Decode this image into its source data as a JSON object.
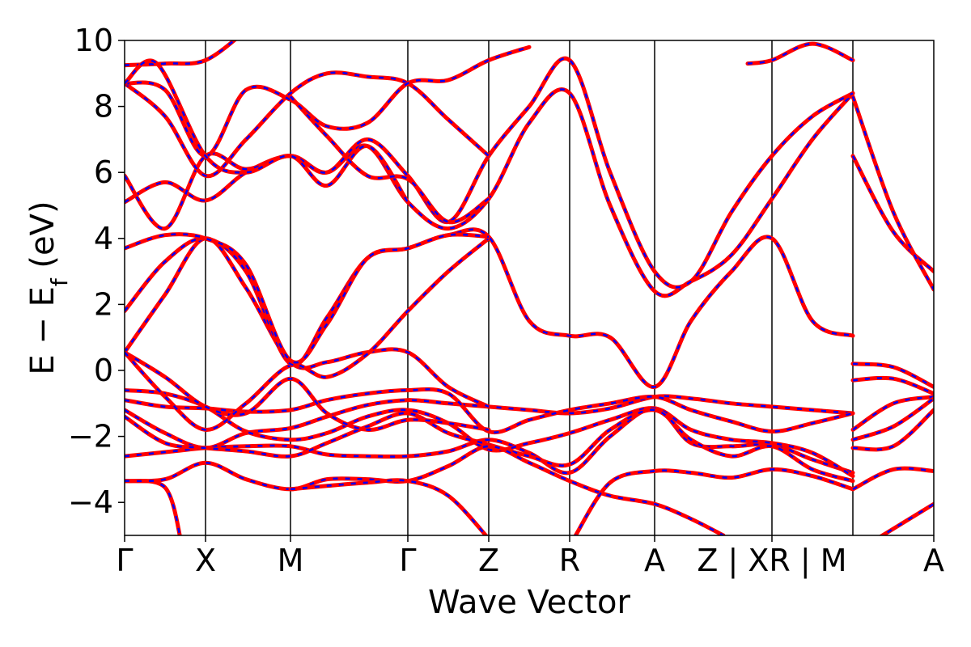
{
  "chart_data": {
    "type": "line",
    "xlabel": "Wave Vector",
    "ylabel_main": "E − E",
    "ylabel_sub": "f",
    "ylabel_unit": " (eV)",
    "ylim": [
      -5,
      10
    ],
    "y_ticks": [
      {
        "value": -4,
        "label": "−4"
      },
      {
        "value": -2,
        "label": "−2"
      },
      {
        "value": 0,
        "label": "0"
      },
      {
        "value": 2,
        "label": "2"
      },
      {
        "value": 4,
        "label": "4"
      },
      {
        "value": 6,
        "label": "6"
      },
      {
        "value": 8,
        "label": "8"
      },
      {
        "value": 10,
        "label": "10"
      }
    ],
    "xlim": [
      0,
      10
    ],
    "k_points": [
      {
        "label": "Γ",
        "x": 0
      },
      {
        "label": "X",
        "x": 1.0
      },
      {
        "label": "M",
        "x": 2.05
      },
      {
        "label": "Γ",
        "x": 3.5
      },
      {
        "label": "Z",
        "x": 4.5
      },
      {
        "label": "R",
        "x": 5.5
      },
      {
        "label": "A",
        "x": 6.55
      },
      {
        "label": "Z | XR | M",
        "x": 8.0
      },
      {
        "label": "A",
        "x": 10.0
      }
    ],
    "vlines": [
      1.0,
      2.05,
      3.5,
      4.5,
      5.5,
      6.55,
      8.0,
      9.0
    ],
    "series_colors": {
      "primary": "#ff0000",
      "overlay": "#0000ff"
    },
    "bands": [
      [
        [
          0,
          -3.35
        ],
        [
          0.5,
          -3.55
        ],
        [
          0.7,
          -5.2
        ]
      ],
      [
        [
          0,
          -2.6
        ],
        [
          0.6,
          -2.45
        ],
        [
          1.0,
          -2.35
        ],
        [
          1.5,
          -2.3
        ],
        [
          2.05,
          -2.3
        ],
        [
          2.5,
          -2.55
        ],
        [
          3.0,
          -2.6
        ],
        [
          3.5,
          -2.6
        ],
        [
          4.0,
          -2.45
        ],
        [
          4.5,
          -2.1
        ],
        [
          5.0,
          -2.5
        ],
        [
          5.5,
          -3.1
        ],
        [
          6.0,
          -2.0
        ],
        [
          6.55,
          -1.15
        ],
        [
          7.0,
          -2.2
        ],
        [
          7.5,
          -2.3
        ],
        [
          8.0,
          -2.25
        ],
        [
          8.5,
          -2.7
        ],
        [
          9.0,
          -3.1
        ]
      ],
      [
        [
          0,
          -1.2
        ],
        [
          0.5,
          -1.9
        ],
        [
          1.0,
          -2.35
        ],
        [
          1.5,
          -1.9
        ],
        [
          2.05,
          -1.75
        ],
        [
          2.5,
          -1.4
        ],
        [
          3.0,
          -1.05
        ],
        [
          3.5,
          -0.9
        ],
        [
          4.0,
          -1.0
        ],
        [
          4.5,
          -1.1
        ],
        [
          5.0,
          -1.2
        ],
        [
          5.5,
          -1.3
        ],
        [
          6.0,
          -1.15
        ],
        [
          6.55,
          -0.8
        ],
        [
          7.0,
          -0.85
        ],
        [
          7.5,
          -1.0
        ],
        [
          8.0,
          -1.1
        ],
        [
          8.5,
          -1.2
        ],
        [
          9.0,
          -1.3
        ]
      ],
      [
        [
          0,
          -0.9
        ],
        [
          0.5,
          -1.1
        ],
        [
          1.0,
          -1.15
        ],
        [
          1.5,
          -1.25
        ],
        [
          2.05,
          -1.2
        ],
        [
          2.5,
          -0.9
        ],
        [
          3.0,
          -0.7
        ],
        [
          3.5,
          -0.6
        ],
        [
          4.0,
          -0.7
        ],
        [
          4.5,
          -1.85
        ],
        [
          5.0,
          -1.5
        ],
        [
          5.5,
          -1.2
        ],
        [
          6.0,
          -1.0
        ],
        [
          6.55,
          -0.8
        ],
        [
          7.0,
          -1.2
        ],
        [
          7.5,
          -1.55
        ],
        [
          8.0,
          -1.85
        ],
        [
          8.5,
          -1.6
        ],
        [
          9.0,
          -1.3
        ]
      ],
      [
        [
          0,
          -0.6
        ],
        [
          0.5,
          -0.7
        ],
        [
          1.0,
          -1.1
        ],
        [
          1.5,
          -1.85
        ],
        [
          2.05,
          -2.1
        ],
        [
          2.5,
          -1.9
        ],
        [
          3.0,
          -1.4
        ],
        [
          3.5,
          -1.2
        ],
        [
          4.0,
          -1.6
        ],
        [
          4.5,
          -2.4
        ],
        [
          5.0,
          -2.2
        ],
        [
          5.5,
          -1.9
        ],
        [
          6.0,
          -1.5
        ],
        [
          6.55,
          -1.15
        ],
        [
          7.0,
          -1.8
        ],
        [
          7.5,
          -2.1
        ],
        [
          8.0,
          -2.2
        ],
        [
          8.5,
          -2.5
        ],
        [
          9.0,
          -3.2
        ]
      ],
      [
        [
          0,
          -1.4
        ],
        [
          0.5,
          -2.2
        ],
        [
          1.0,
          -2.35
        ],
        [
          1.5,
          -2.45
        ],
        [
          2.05,
          -2.6
        ],
        [
          2.5,
          -2.2
        ],
        [
          3.0,
          -1.7
        ],
        [
          3.5,
          -1.3
        ],
        [
          4.0,
          -1.9
        ],
        [
          4.5,
          -2.25
        ],
        [
          5.0,
          -2.6
        ],
        [
          5.5,
          -2.85
        ],
        [
          6.0,
          -1.8
        ],
        [
          6.55,
          -1.2
        ],
        [
          7.0,
          -2.1
        ],
        [
          7.5,
          -2.6
        ],
        [
          8.0,
          -2.3
        ],
        [
          8.5,
          -3.0
        ],
        [
          9.0,
          -3.35
        ]
      ],
      [
        [
          0,
          -3.35
        ],
        [
          0.5,
          -3.3
        ],
        [
          1.0,
          -2.8
        ],
        [
          1.5,
          -3.3
        ],
        [
          2.05,
          -3.6
        ],
        [
          2.5,
          -3.3
        ],
        [
          3.0,
          -3.3
        ],
        [
          3.5,
          -3.35
        ],
        [
          4.0,
          -2.9
        ],
        [
          4.5,
          -2.3
        ],
        [
          5.0,
          -2.8
        ],
        [
          5.5,
          -3.35
        ],
        [
          6.0,
          -3.8
        ],
        [
          6.55,
          -4.05
        ],
        [
          7.0,
          -4.5
        ],
        [
          7.4,
          -5.0
        ]
      ],
      [
        [
          2.05,
          -3.6
        ],
        [
          2.5,
          -3.5
        ],
        [
          3.0,
          -3.4
        ],
        [
          3.5,
          -3.35
        ],
        [
          4.0,
          -3.8
        ],
        [
          4.5,
          -5.1
        ]
      ],
      [
        [
          5.55,
          -5.1
        ],
        [
          6.0,
          -3.4
        ],
        [
          6.55,
          -3.05
        ],
        [
          7.0,
          -3.1
        ],
        [
          7.5,
          -3.25
        ],
        [
          8.0,
          -3.0
        ],
        [
          8.5,
          -3.2
        ],
        [
          9.0,
          -3.6
        ]
      ],
      [
        [
          0,
          0.55
        ],
        [
          0.5,
          -0.2
        ],
        [
          1.0,
          -1.1
        ],
        [
          1.5,
          -1.3
        ],
        [
          2.05,
          -0.25
        ],
        [
          2.5,
          -1.3
        ],
        [
          3.0,
          -1.8
        ],
        [
          3.5,
          -1.5
        ],
        [
          4.0,
          -1.6
        ],
        [
          4.5,
          -1.8
        ]
      ],
      [
        [
          0,
          0.55
        ],
        [
          0.5,
          2.3
        ],
        [
          1.0,
          4.0
        ],
        [
          1.5,
          2.5
        ],
        [
          2.05,
          0.25
        ],
        [
          2.5,
          0.25
        ],
        [
          3.0,
          0.55
        ],
        [
          3.5,
          0.55
        ],
        [
          4.0,
          -0.5
        ],
        [
          4.5,
          -1.1
        ]
      ],
      [
        [
          0,
          0.55
        ],
        [
          0.5,
          -0.8
        ],
        [
          1.0,
          -1.8
        ],
        [
          1.5,
          -1.0
        ],
        [
          2.05,
          0.15
        ],
        [
          2.5,
          -0.2
        ],
        [
          3.0,
          0.5
        ],
        [
          3.5,
          1.8
        ],
        [
          4.0,
          3.0
        ],
        [
          4.5,
          4.0
        ]
      ],
      [
        [
          0,
          1.8
        ],
        [
          0.5,
          3.3
        ],
        [
          1.0,
          4.0
        ],
        [
          1.5,
          3.0
        ],
        [
          2.05,
          0.2
        ],
        [
          2.5,
          1.6
        ],
        [
          3.0,
          3.4
        ],
        [
          3.5,
          3.7
        ],
        [
          4.0,
          4.1
        ],
        [
          4.5,
          4.05
        ],
        [
          5.0,
          1.5
        ],
        [
          5.5,
          1.05
        ],
        [
          6.0,
          1.0
        ],
        [
          6.55,
          -0.5
        ],
        [
          7.0,
          1.5
        ],
        [
          7.5,
          3.0
        ],
        [
          8.0,
          4.0
        ],
        [
          8.5,
          1.5
        ],
        [
          9.0,
          1.05
        ]
      ],
      [
        [
          0,
          3.7
        ],
        [
          0.5,
          4.1
        ],
        [
          1.0,
          4.0
        ],
        [
          1.5,
          3.2
        ],
        [
          2.05,
          0.3
        ],
        [
          2.5,
          1.4
        ],
        [
          3.0,
          3.4
        ],
        [
          3.5,
          3.7
        ],
        [
          4.0,
          4.1
        ],
        [
          4.5,
          4.05
        ]
      ],
      [
        [
          0,
          5.1
        ],
        [
          0.5,
          5.7
        ],
        [
          1.0,
          5.15
        ],
        [
          1.5,
          6.0
        ],
        [
          2.05,
          6.5
        ],
        [
          2.5,
          6.0
        ],
        [
          3.0,
          6.8
        ],
        [
          3.5,
          5.1
        ],
        [
          4.0,
          4.3
        ],
        [
          4.5,
          5.2
        ],
        [
          5.0,
          7.5
        ],
        [
          5.5,
          8.4
        ],
        [
          6.0,
          5.0
        ],
        [
          6.55,
          2.4
        ],
        [
          7.0,
          2.7
        ],
        [
          7.5,
          3.5
        ],
        [
          8.0,
          5.2
        ],
        [
          8.5,
          7.0
        ],
        [
          9.0,
          8.4
        ]
      ],
      [
        [
          0,
          5.9
        ],
        [
          0.5,
          4.3
        ],
        [
          1.0,
          6.5
        ],
        [
          1.5,
          6.1
        ],
        [
          2.05,
          6.5
        ],
        [
          2.5,
          6.0
        ],
        [
          3.0,
          7.0
        ],
        [
          3.5,
          5.9
        ],
        [
          4.0,
          4.5
        ],
        [
          4.5,
          6.5
        ],
        [
          5.0,
          8.0
        ],
        [
          5.5,
          9.4
        ],
        [
          6.0,
          6.0
        ],
        [
          6.55,
          3.0
        ],
        [
          7.0,
          2.7
        ],
        [
          7.5,
          4.8
        ],
        [
          8.0,
          6.5
        ],
        [
          8.5,
          7.7
        ],
        [
          9.0,
          8.4
        ]
      ],
      [
        [
          0,
          8.7
        ],
        [
          0.5,
          7.7
        ],
        [
          1.0,
          5.9
        ],
        [
          1.5,
          7.0
        ],
        [
          2.05,
          8.4
        ],
        [
          2.5,
          9.0
        ],
        [
          3.0,
          8.9
        ],
        [
          3.5,
          8.7
        ],
        [
          4.0,
          7.6
        ],
        [
          4.5,
          6.5
        ]
      ],
      [
        [
          0,
          8.7
        ],
        [
          0.5,
          8.5
        ],
        [
          1.0,
          6.5
        ],
        [
          1.5,
          8.5
        ],
        [
          2.05,
          8.2
        ],
        [
          2.5,
          7.4
        ],
        [
          3.0,
          7.5
        ],
        [
          3.5,
          8.7
        ],
        [
          4.0,
          8.8
        ],
        [
          4.5,
          9.4
        ],
        [
          5.0,
          9.8
        ]
      ],
      [
        [
          0,
          9.25
        ],
        [
          0.5,
          9.3
        ],
        [
          1.0,
          9.4
        ],
        [
          1.5,
          10.3
        ]
      ],
      [
        [
          0,
          8.7
        ],
        [
          0.4,
          9.3
        ],
        [
          1.0,
          6.5
        ],
        [
          1.5,
          6.0
        ],
        [
          2.05,
          6.5
        ],
        [
          2.5,
          5.6
        ],
        [
          3.0,
          6.8
        ],
        [
          3.5,
          5.1
        ]
      ],
      [
        [
          2.05,
          8.3
        ],
        [
          2.5,
          7.1
        ],
        [
          3.0,
          5.9
        ],
        [
          3.5,
          5.8
        ],
        [
          4.0,
          4.5
        ],
        [
          4.5,
          5.2
        ]
      ],
      [
        [
          7.7,
          9.3
        ],
        [
          8.0,
          9.4
        ],
        [
          8.5,
          9.9
        ],
        [
          9.0,
          9.4
        ]
      ],
      [
        [
          9.0,
          6.5
        ],
        [
          9.5,
          4.2
        ],
        [
          10.0,
          3.0
        ]
      ],
      [
        [
          9.0,
          8.3
        ],
        [
          9.5,
          4.8
        ],
        [
          10.0,
          2.45
        ]
      ],
      [
        [
          9.0,
          0.2
        ],
        [
          9.5,
          0.1
        ],
        [
          10.0,
          -0.5
        ]
      ],
      [
        [
          9.0,
          -0.3
        ],
        [
          9.5,
          -0.25
        ],
        [
          10.0,
          -0.7
        ]
      ],
      [
        [
          9.0,
          -1.8
        ],
        [
          9.5,
          -1.0
        ],
        [
          10.0,
          -0.8
        ]
      ],
      [
        [
          9.0,
          -2.1
        ],
        [
          9.5,
          -1.7
        ],
        [
          10.0,
          -0.85
        ]
      ],
      [
        [
          9.0,
          -2.35
        ],
        [
          9.5,
          -2.3
        ],
        [
          10.0,
          -1.2
        ]
      ],
      [
        [
          9.0,
          -3.6
        ],
        [
          9.5,
          -3.0
        ],
        [
          10.0,
          -3.05
        ]
      ],
      [
        [
          9.3,
          -5.1
        ],
        [
          10.0,
          -4.05
        ]
      ]
    ]
  }
}
